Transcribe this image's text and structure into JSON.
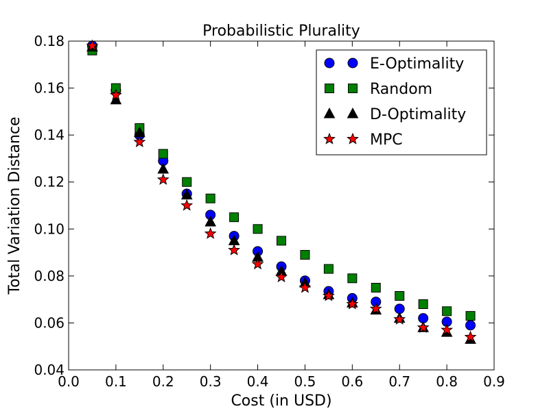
{
  "chart_data": {
    "type": "scatter",
    "title": "Probabilistic Plurality",
    "xlabel": "Cost (in USD)",
    "ylabel": "Total Variation Distance",
    "xlim": [
      0.0,
      0.9
    ],
    "ylim": [
      0.04,
      0.18
    ],
    "xticks": [
      "0.0",
      "0.1",
      "0.2",
      "0.3",
      "0.4",
      "0.5",
      "0.6",
      "0.7",
      "0.8",
      "0.9"
    ],
    "yticks": [
      "0.04",
      "0.06",
      "0.08",
      "0.10",
      "0.12",
      "0.14",
      "0.16",
      "0.18"
    ],
    "grid": false,
    "legend_position": "top-right",
    "x": [
      0.05,
      0.1,
      0.15,
      0.2,
      0.25,
      0.3,
      0.35,
      0.4,
      0.45,
      0.5,
      0.55,
      0.6,
      0.65,
      0.7,
      0.75,
      0.8,
      0.85
    ],
    "series": [
      {
        "name": "E-Optimality",
        "marker": "circle",
        "color": "#0000ff",
        "values": [
          0.178,
          0.159,
          0.14,
          0.129,
          0.115,
          0.106,
          0.097,
          0.0905,
          0.084,
          0.078,
          0.0735,
          0.0705,
          0.069,
          0.066,
          0.062,
          0.0605,
          0.059
        ]
      },
      {
        "name": "Random",
        "marker": "square",
        "color": "#008000",
        "values": [
          0.176,
          0.16,
          0.143,
          0.132,
          0.12,
          0.113,
          0.105,
          0.1,
          0.095,
          0.089,
          0.083,
          0.079,
          0.075,
          0.0715,
          0.068,
          0.065,
          0.063
        ]
      },
      {
        "name": "D-Optimality",
        "marker": "triangle",
        "color": "#000000",
        "values": [
          0.1775,
          0.155,
          0.141,
          0.1255,
          0.1145,
          0.103,
          0.095,
          0.088,
          0.082,
          0.077,
          0.072,
          0.0685,
          0.0655,
          0.062,
          0.058,
          0.056,
          0.053
        ]
      },
      {
        "name": "MPC",
        "marker": "star",
        "color": "#ff0000",
        "values": [
          0.178,
          0.157,
          0.137,
          0.121,
          0.11,
          0.098,
          0.091,
          0.085,
          0.0795,
          0.075,
          0.0715,
          0.068,
          0.066,
          0.0615,
          0.058,
          0.057,
          0.054
        ]
      }
    ]
  }
}
